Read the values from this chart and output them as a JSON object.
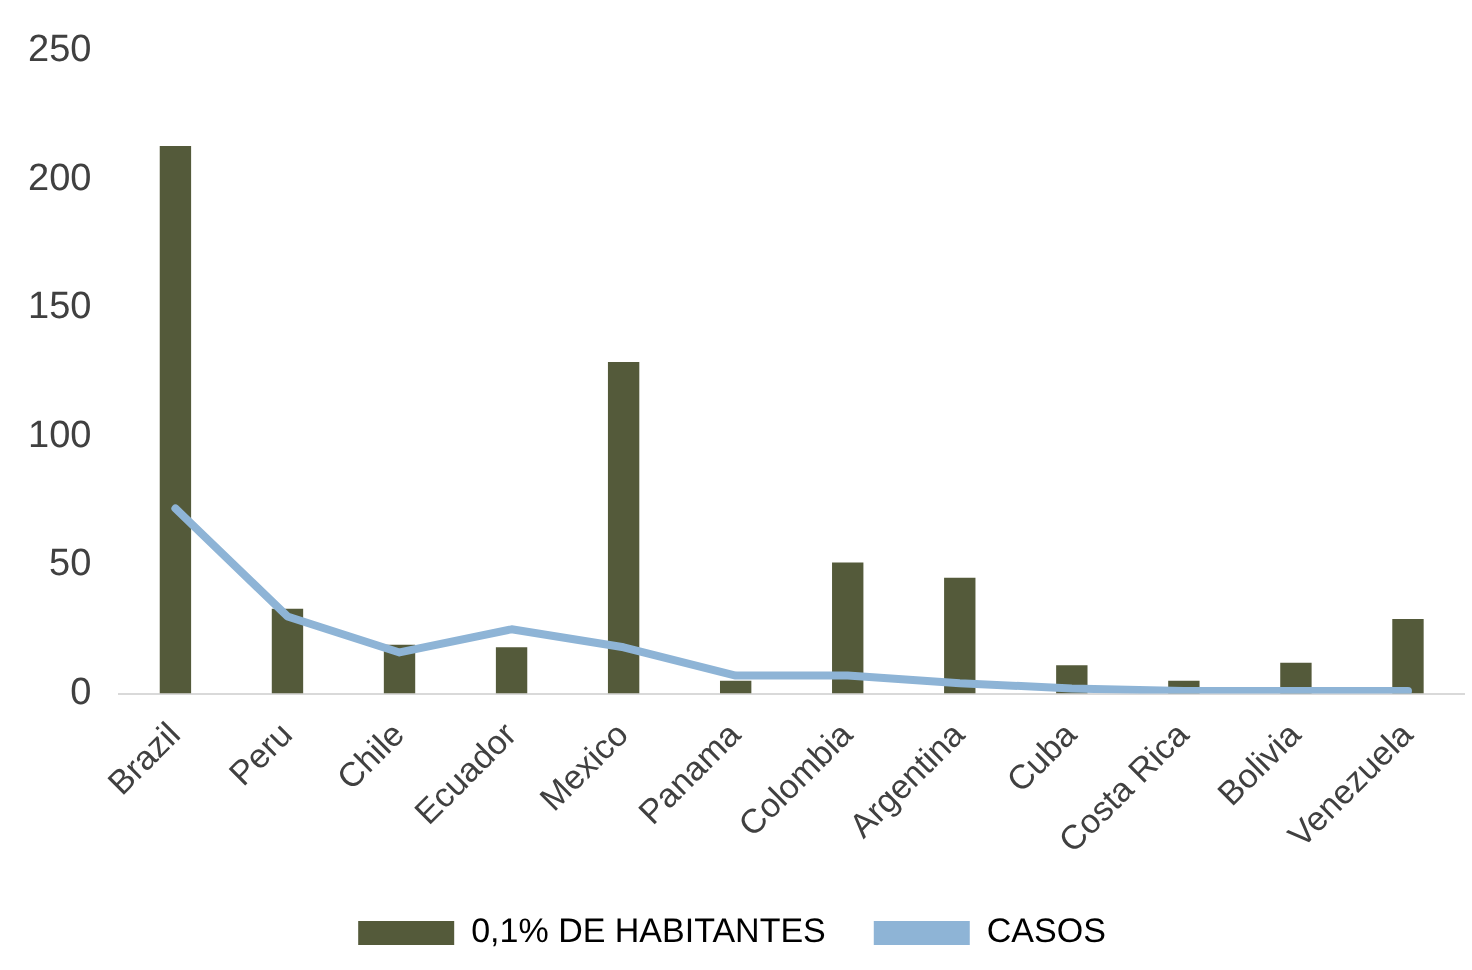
{
  "chart_data": {
    "type": "bar",
    "categories": [
      "Brazil",
      "Peru",
      "Chile",
      "Ecuador",
      "Mexico",
      "Panama",
      "Colombia",
      "Argentina",
      "Cuba",
      "Costa Rica",
      "Bolivia",
      "Venezuela"
    ],
    "series": [
      {
        "name": "0,1% DE HABITANTES",
        "color": "#545a3a",
        "values": [
          213,
          33,
          19,
          18,
          129,
          5,
          51,
          45,
          11,
          5,
          12,
          29
        ]
      },
      {
        "name": "CASOS",
        "type": "line",
        "color": "#8eb4d6",
        "values": [
          72,
          30,
          16,
          25,
          18,
          7,
          7,
          4,
          2,
          1,
          1,
          1
        ]
      }
    ],
    "ylim": [
      0,
      250
    ],
    "yticks": [
      0,
      50,
      100,
      150,
      200,
      250
    ],
    "grid": false,
    "legend": "bottom",
    "marker": "none"
  }
}
